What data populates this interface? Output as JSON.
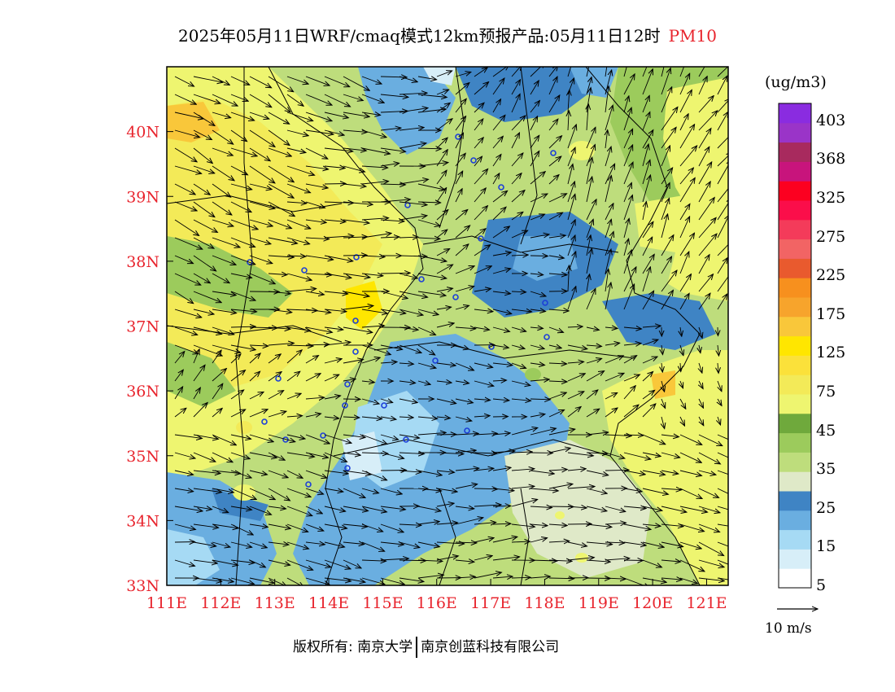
{
  "title": {
    "text": "2025年05月11日WRF/cmaq模式12km预报产品:05月11日12时",
    "pollutant": "PM10"
  },
  "map": {
    "lat_labels": [
      "40N",
      "39N",
      "38N",
      "37N",
      "36N",
      "35N",
      "34N",
      "33N"
    ],
    "lon_labels": [
      "111E",
      "112E",
      "113E",
      "114E",
      "115E",
      "116E",
      "117E",
      "118E",
      "119E",
      "120E",
      "121E"
    ],
    "lat_range": [
      33,
      41
    ],
    "lon_range": [
      111,
      121.4
    ],
    "label_color": "#e8242d"
  },
  "colorbar": {
    "units": "(ug/m3)",
    "levels": [
      "403",
      "368",
      "325",
      "275",
      "225",
      "175",
      "125",
      "75",
      "45",
      "35",
      "25",
      "15",
      "5"
    ],
    "colors": [
      "#ffffff",
      "#d7eef8",
      "#a6daf4",
      "#6aaee0",
      "#3f84c4",
      "#dfe9c8",
      "#bedd7c",
      "#9ccb5c",
      "#6fa93c",
      "#eef570",
      "#f3ea58",
      "#fbe13a",
      "#ffe600",
      "#f9c73a",
      "#f7a42c",
      "#f7901e",
      "#e95a2e",
      "#f26464",
      "#f43b5a",
      "#fb0e4a",
      "#fc0020",
      "#c8147c",
      "#a82a5e",
      "#9a34c8",
      "#8a2ce0"
    ]
  },
  "vector_ref": {
    "label": "10 m/s"
  },
  "copyright": {
    "left": "版权所有: 南京大学",
    "right": "南京创蓝科技有限公司"
  }
}
